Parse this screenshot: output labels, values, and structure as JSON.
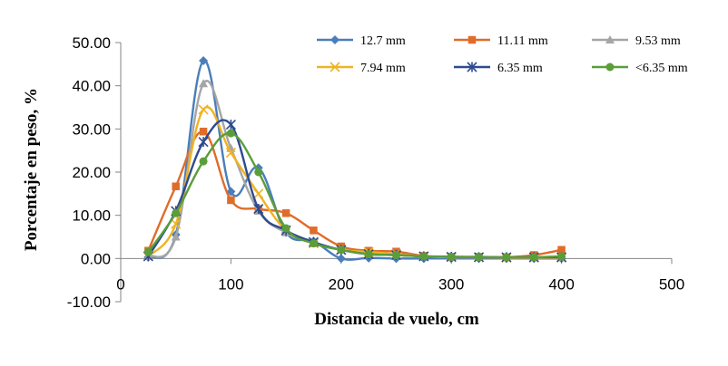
{
  "chart_data": {
    "type": "line",
    "xlabel": "Distancia de vuelo, cm",
    "ylabel": "Porcentaje  en peso, %",
    "xlim": [
      0,
      500
    ],
    "ylim": [
      -10,
      50
    ],
    "x_ticks": [
      0,
      100,
      200,
      300,
      400,
      500
    ],
    "x_tick_labels": [
      "0",
      "100",
      "200",
      "300",
      "400",
      "500"
    ],
    "y_ticks": [
      -10,
      0,
      10,
      20,
      30,
      40,
      50
    ],
    "y_tick_labels": [
      "-10.00",
      "0.00",
      "10.00",
      "20.00",
      "30.00",
      "40.00",
      "50.00"
    ],
    "grid": false,
    "legend": "top-right",
    "x": [
      25,
      50,
      75,
      100,
      125,
      150,
      175,
      200,
      225,
      250,
      275,
      300,
      325,
      350,
      375,
      400
    ],
    "series": [
      {
        "name": "12.7 mm",
        "color": "#4a7ebb",
        "marker": "diamond",
        "values": [
          0.3,
          5.5,
          45.8,
          15.5,
          21.0,
          6.0,
          4.0,
          0.0,
          0.1,
          0.0,
          0.0,
          0.0,
          0.0,
          0.0,
          0.0,
          0.0
        ]
      },
      {
        "name": "11.11 mm",
        "color": "#e06c2a",
        "marker": "square",
        "values": [
          1.8,
          16.7,
          29.4,
          13.5,
          11.5,
          10.5,
          6.5,
          2.8,
          1.8,
          1.6,
          0.6,
          0.4,
          0.4,
          0.3,
          0.8,
          2.0
        ]
      },
      {
        "name": "9.53 mm",
        "color": "#a5a5a5",
        "marker": "triangle",
        "values": [
          0.5,
          5.0,
          40.5,
          25.5,
          11.0,
          6.0,
          3.5,
          2.0,
          1.0,
          0.8,
          0.5,
          0.3,
          0.3,
          0.2,
          0.2,
          0.2
        ]
      },
      {
        "name": "7.94 mm",
        "color": "#f0b323",
        "marker": "x",
        "values": [
          0.5,
          8.0,
          34.5,
          24.5,
          15.0,
          6.5,
          3.5,
          2.0,
          1.5,
          1.0,
          0.5,
          0.3,
          0.3,
          0.2,
          0.2,
          0.2
        ]
      },
      {
        "name": "6.35 mm",
        "color": "#2e4b8f",
        "marker": "star",
        "values": [
          0.5,
          11.0,
          27.0,
          31.0,
          11.5,
          6.5,
          3.8,
          2.0,
          1.0,
          0.8,
          0.5,
          0.4,
          0.3,
          0.3,
          0.3,
          0.3
        ]
      },
      {
        "name": "<6.35 mm",
        "color": "#5a9e3a",
        "marker": "circle",
        "values": [
          1.5,
          10.5,
          22.5,
          29.0,
          20.0,
          7.0,
          3.5,
          2.0,
          1.0,
          0.8,
          0.5,
          0.4,
          0.3,
          0.3,
          0.3,
          0.5
        ]
      }
    ]
  }
}
